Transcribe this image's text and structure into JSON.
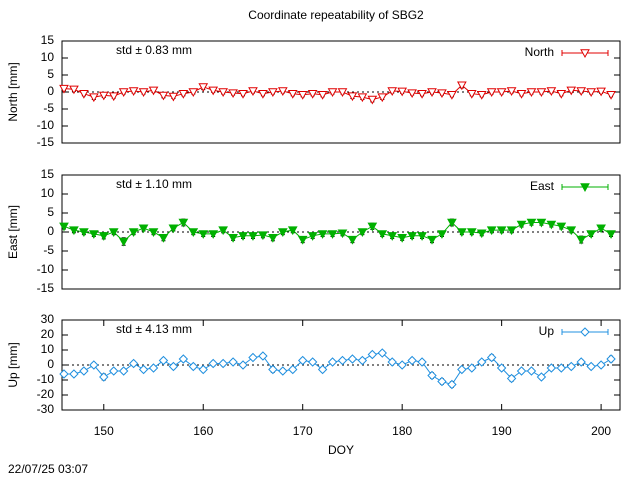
{
  "title": "Coordinate repeatability of SBG2",
  "timestamp": "22/07/25 03:07",
  "chart_data": [
    {
      "type": "line",
      "y_label": "North [mm]",
      "annotation": "std ± 0.83 mm",
      "annotation_color": "#e00000",
      "legend": "top-right",
      "xlim": [
        145.8,
        201.9
      ],
      "ylim": [
        -15,
        15
      ],
      "yticks": [
        -15,
        -10,
        -5,
        0,
        5,
        10,
        15
      ],
      "zero_line": true,
      "x": [
        146,
        147,
        148,
        149,
        150,
        151,
        152,
        153,
        154,
        155,
        156,
        157,
        158,
        159,
        160,
        161,
        162,
        163,
        164,
        165,
        166,
        167,
        168,
        169,
        170,
        171,
        172,
        173,
        174,
        175,
        176,
        177,
        178,
        179,
        180,
        181,
        182,
        183,
        184,
        185,
        186,
        187,
        188,
        189,
        190,
        191,
        192,
        193,
        194,
        195,
        196,
        197,
        198,
        199,
        200,
        201
      ],
      "series": [
        {
          "name": "North",
          "color": "#e00000",
          "marker": "triangle-down-open",
          "values": [
            1,
            0.8,
            -0.5,
            -1.5,
            -1,
            -1.2,
            0,
            0.3,
            0,
            0.5,
            -1,
            -1.3,
            -0.5,
            0,
            1.5,
            0.5,
            0,
            -0.3,
            -0.5,
            0.3,
            -0.5,
            0,
            0.3,
            -0.5,
            -0.8,
            -0.5,
            -0.8,
            0,
            0,
            -1.2,
            -1.5,
            -2.2,
            -1.5,
            0.3,
            0.2,
            -0.3,
            -0.5,
            0,
            -0.3,
            -0.8,
            2,
            -0.5,
            -0.8,
            0,
            0,
            0.3,
            -0.5,
            0,
            0,
            0.3,
            -0.5,
            0.5,
            0.3,
            0,
            0.2,
            -0.8
          ],
          "errors": [
            0.6,
            0.6,
            0.6,
            0.7,
            0.6,
            0.6,
            0.6,
            0.6,
            0.6,
            0.6,
            0.7,
            0.6,
            0.6,
            0.6,
            0.8,
            0.6,
            0.6,
            0.6,
            0.6,
            0.6,
            0.6,
            0.6,
            0.6,
            0.6,
            0.6,
            0.6,
            0.6,
            0.6,
            0.6,
            0.7,
            0.7,
            0.7,
            0.7,
            0.6,
            0.6,
            0.6,
            0.6,
            0.6,
            0.6,
            0.6,
            0.8,
            0.6,
            0.6,
            0.6,
            0.6,
            0.6,
            0.6,
            0.6,
            0.6,
            0.6,
            0.6,
            0.6,
            0.6,
            0.6,
            0.6,
            0.6
          ]
        }
      ]
    },
    {
      "type": "line",
      "y_label": "East [mm]",
      "annotation": "std ± 1.10 mm",
      "annotation_color": "#00b000",
      "legend": "top-right",
      "xlim": [
        145.8,
        201.9
      ],
      "ylim": [
        -15,
        15
      ],
      "yticks": [
        -15,
        -10,
        -5,
        0,
        5,
        10,
        15
      ],
      "zero_line": true,
      "x": [
        146,
        147,
        148,
        149,
        150,
        151,
        152,
        153,
        154,
        155,
        156,
        157,
        158,
        159,
        160,
        161,
        162,
        163,
        164,
        165,
        166,
        167,
        168,
        169,
        170,
        171,
        172,
        173,
        174,
        175,
        176,
        177,
        178,
        179,
        180,
        181,
        182,
        183,
        184,
        185,
        186,
        187,
        188,
        189,
        190,
        191,
        192,
        193,
        194,
        195,
        196,
        197,
        198,
        199,
        200,
        201
      ],
      "series": [
        {
          "name": "East",
          "color": "#00b000",
          "marker": "triangle-down",
          "values": [
            1.5,
            0.5,
            0,
            -0.5,
            -1,
            0,
            -2.5,
            0,
            1,
            0,
            -1.5,
            1,
            2.5,
            0,
            -0.5,
            -0.5,
            0.5,
            -1.5,
            -1,
            -1,
            -0.8,
            -1.5,
            0,
            0.5,
            -2,
            -1,
            -0.5,
            -0.5,
            -0.3,
            -2,
            0,
            1.5,
            -0.5,
            -1,
            -1.5,
            -1,
            -1,
            -2,
            -0.5,
            2.5,
            0,
            0,
            -0.3,
            0.5,
            0.5,
            0.5,
            2,
            2.5,
            2.5,
            2,
            1.5,
            0.5,
            -2,
            -0.5,
            1,
            -0.5
          ],
          "errors": [
            0.7,
            0.7,
            0.7,
            0.7,
            0.8,
            0.7,
            1,
            0.7,
            0.7,
            0.7,
            0.8,
            0.7,
            0.9,
            0.7,
            0.7,
            0.7,
            0.7,
            0.7,
            0.7,
            0.7,
            0.7,
            0.8,
            0.7,
            0.7,
            0.8,
            0.7,
            0.7,
            0.7,
            0.7,
            0.8,
            0.7,
            0.8,
            0.7,
            0.7,
            0.7,
            0.7,
            0.7,
            0.8,
            0.7,
            0.9,
            0.7,
            0.7,
            0.7,
            0.7,
            0.7,
            0.7,
            0.7,
            0.7,
            0.7,
            0.7,
            0.7,
            0.7,
            0.9,
            0.7,
            0.8,
            0.7
          ]
        }
      ]
    },
    {
      "type": "line",
      "y_label": "Up [mm]",
      "annotation": "std ± 4.13 mm",
      "annotation_color": "#2090e0",
      "legend": "top-right",
      "xlim": [
        145.8,
        201.9
      ],
      "ylim": [
        -30,
        30
      ],
      "yticks": [
        -30,
        -20,
        -10,
        0,
        10,
        20,
        30
      ],
      "zero_line": true,
      "xticks": [
        150,
        160,
        170,
        180,
        190,
        200
      ],
      "x_label": "DOY",
      "x": [
        146,
        147,
        148,
        149,
        150,
        151,
        152,
        153,
        154,
        155,
        156,
        157,
        158,
        159,
        160,
        161,
        162,
        163,
        164,
        165,
        166,
        167,
        168,
        169,
        170,
        171,
        172,
        173,
        174,
        175,
        176,
        177,
        178,
        179,
        180,
        181,
        182,
        183,
        184,
        185,
        186,
        187,
        188,
        189,
        190,
        191,
        192,
        193,
        194,
        195,
        196,
        197,
        198,
        199,
        200,
        201
      ],
      "series": [
        {
          "name": "Up",
          "color": "#2090e0",
          "marker": "diamond-open",
          "values": [
            -6,
            -6,
            -4,
            0,
            -8,
            -4,
            -4,
            1,
            -3,
            -2,
            3,
            -1,
            4,
            -1,
            -3,
            1,
            1,
            2,
            0,
            5,
            6,
            -3,
            -4,
            -3,
            3,
            2,
            -3,
            2,
            3,
            4,
            3,
            7,
            8,
            2,
            0,
            3,
            2,
            -7,
            -11,
            -13,
            -3,
            -2,
            2,
            5,
            -2,
            -9,
            -4,
            -4,
            -8,
            -2,
            -2,
            -1,
            2,
            -1,
            0,
            4
          ],
          "errors": [
            1.5,
            1.5,
            1.5,
            1.5,
            2,
            1.5,
            1.5,
            1.5,
            1.5,
            1.5,
            1.5,
            1.5,
            1.5,
            1.5,
            1.5,
            1.5,
            1.5,
            1.5,
            1.5,
            1.5,
            1.5,
            1.8,
            1.5,
            1.5,
            1.5,
            1.5,
            1.5,
            1.5,
            1.5,
            1.5,
            1.5,
            1.5,
            1.5,
            1.5,
            1.5,
            1.5,
            1.5,
            1.8,
            1.8,
            1.8,
            1.5,
            1.5,
            1.5,
            1.8,
            1.5,
            1.8,
            1.5,
            1.5,
            1.5,
            1.5,
            1.5,
            1.5,
            1.5,
            1.5,
            1.5,
            1.8
          ]
        }
      ]
    }
  ]
}
